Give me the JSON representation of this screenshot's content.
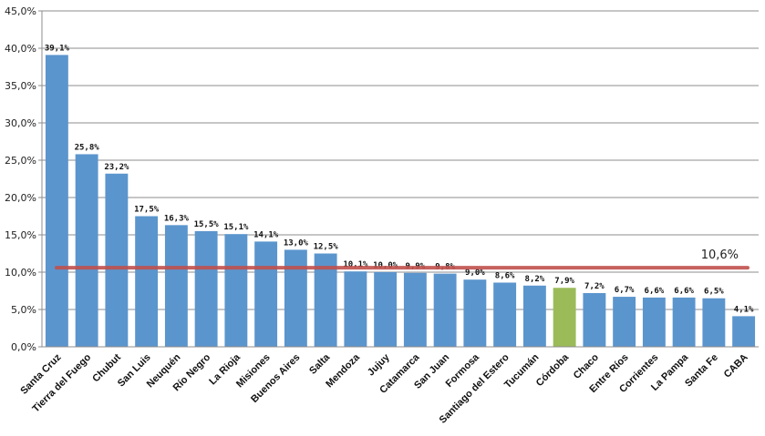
{
  "chart_data": {
    "type": "bar",
    "title": "",
    "xlabel": "",
    "ylabel": "",
    "ylim": [
      0,
      45
    ],
    "yticks": [
      "0,0%",
      "5,0%",
      "10,0%",
      "15,0%",
      "20,0%",
      "25,0%",
      "30,0%",
      "35,0%",
      "40,0%",
      "45,0%"
    ],
    "grid": "horizontal",
    "categories": [
      "Santa Cruz",
      "Tierra del Fuego",
      "Chubut",
      "San Luis",
      "Neuquén",
      "Río Negro",
      "La Rioja",
      "Misiones",
      "Buenos Aires",
      "Salta",
      "Mendoza",
      "Jujuy",
      "Catamarca",
      "San Juan",
      "Formosa",
      "Santiago del Estero",
      "Tucumán",
      "Córdoba",
      "Chaco",
      "Entre Ríos",
      "Corrientes",
      "La Pampa",
      "Santa Fe",
      "CABA"
    ],
    "values": [
      39.1,
      25.8,
      23.2,
      17.5,
      16.3,
      15.5,
      15.1,
      14.1,
      13.0,
      12.5,
      10.1,
      10.0,
      9.9,
      9.8,
      9.0,
      8.6,
      8.2,
      7.9,
      7.2,
      6.7,
      6.6,
      6.6,
      6.5,
      4.1
    ],
    "value_labels": [
      "39,1%",
      "25,8%",
      "23,2%",
      "17,5%",
      "16,3%",
      "15,5%",
      "15,1%",
      "14,1%",
      "13,0%",
      "12,5%",
      "10,1%",
      "10,0%",
      "9,9%",
      "9,8%",
      "9,0%",
      "8,6%",
      "8,2%",
      "7,9%",
      "7,2%",
      "6,7%",
      "6,6%",
      "6,6%",
      "6,5%",
      "4,1%"
    ],
    "highlight_category": "Córdoba",
    "reference_line": {
      "value": 10.6,
      "label": "10,6%"
    },
    "colors": {
      "bar": "#5b95cd",
      "highlight": "#9bbb59",
      "reference_line": "#c0504d",
      "grid": "#8c8c8c",
      "axis": "#8c8c8c"
    }
  }
}
